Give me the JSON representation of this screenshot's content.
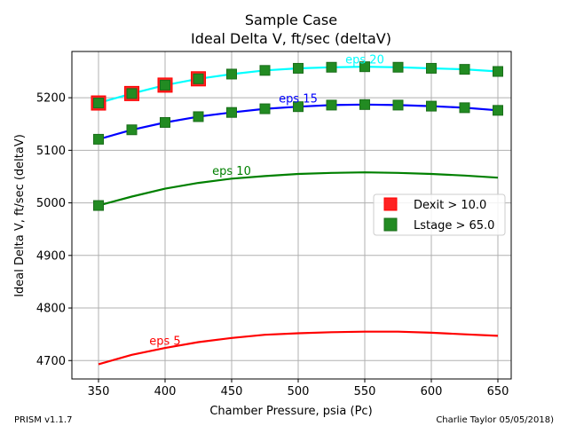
{
  "chart_data": {
    "type": "line",
    "title": "Sample Case",
    "subtitle": "Ideal Delta V, ft/sec (deltaV)",
    "xlabel": "Chamber Pressure, psia (Pc)",
    "ylabel": "Ideal Delta V, ft/sec (deltaV)",
    "xlim": [
      330,
      660
    ],
    "ylim": [
      4665,
      5288
    ],
    "xticks": [
      350,
      400,
      450,
      500,
      550,
      600,
      650
    ],
    "yticks": [
      4700,
      4800,
      4900,
      5000,
      5100,
      5200
    ],
    "grid": true,
    "legend_position": "center-right",
    "x": [
      350,
      375,
      400,
      425,
      450,
      475,
      500,
      525,
      550,
      575,
      600,
      625,
      650
    ],
    "series": [
      {
        "name": "eps 20",
        "color": "#00ffff",
        "values": [
          5190,
          5208,
          5224,
          5236,
          5245,
          5252,
          5256,
          5258,
          5259,
          5258,
          5256,
          5254,
          5250
        ]
      },
      {
        "name": "eps 15",
        "color": "#0000ff",
        "values": [
          5121,
          5139,
          5153,
          5164,
          5172,
          5179,
          5183,
          5186,
          5187,
          5186,
          5184,
          5181,
          5176
        ]
      },
      {
        "name": "eps 10",
        "color": "#008000",
        "values": [
          4995,
          5012,
          5027,
          5038,
          5046,
          5051,
          5055,
          5057,
          5058,
          5057,
          5055,
          5052,
          5048
        ]
      },
      {
        "name": "eps 5",
        "color": "#ff0000",
        "values": [
          4693,
          4711,
          4724,
          4735,
          4743,
          4749,
          4752,
          4754,
          4755,
          4755,
          4753,
          4750,
          4747
        ]
      }
    ],
    "curve_labels": [
      {
        "text": "eps 20",
        "color": "#00ffff",
        "x": 550,
        "y": 5265
      },
      {
        "text": "eps 15",
        "color": "#0000ff",
        "x": 500,
        "y": 5191
      },
      {
        "text": "eps 10",
        "color": "#008000",
        "x": 450,
        "y": 5053
      },
      {
        "text": "eps 5",
        "color": "#ff0000",
        "x": 400,
        "y": 4730
      }
    ],
    "markers": {
      "dexit": {
        "label": "Dexit > 10.0",
        "color": "#ff2222",
        "points": [
          {
            "x": 350,
            "y": 5190
          },
          {
            "x": 375,
            "y": 5208
          },
          {
            "x": 400,
            "y": 5224
          },
          {
            "x": 425,
            "y": 5236
          }
        ]
      },
      "lstage": {
        "label": "Lstage > 65.0",
        "color": "#228b22",
        "points": [
          {
            "x": 350,
            "y": 5190
          },
          {
            "x": 375,
            "y": 5208
          },
          {
            "x": 400,
            "y": 5224
          },
          {
            "x": 425,
            "y": 5236
          },
          {
            "x": 450,
            "y": 5245
          },
          {
            "x": 475,
            "y": 5252
          },
          {
            "x": 500,
            "y": 5256
          },
          {
            "x": 525,
            "y": 5258
          },
          {
            "x": 550,
            "y": 5259
          },
          {
            "x": 575,
            "y": 5258
          },
          {
            "x": 600,
            "y": 5256
          },
          {
            "x": 625,
            "y": 5254
          },
          {
            "x": 650,
            "y": 5250
          },
          {
            "x": 350,
            "y": 5121
          },
          {
            "x": 375,
            "y": 5139
          },
          {
            "x": 400,
            "y": 5153
          },
          {
            "x": 425,
            "y": 5164
          },
          {
            "x": 450,
            "y": 5172
          },
          {
            "x": 475,
            "y": 5179
          },
          {
            "x": 500,
            "y": 5183
          },
          {
            "x": 525,
            "y": 5186
          },
          {
            "x": 550,
            "y": 5187
          },
          {
            "x": 575,
            "y": 5186
          },
          {
            "x": 600,
            "y": 5184
          },
          {
            "x": 625,
            "y": 5181
          },
          {
            "x": 650,
            "y": 5176
          },
          {
            "x": 350,
            "y": 4995
          }
        ]
      }
    }
  },
  "footer": {
    "left": "PRISM v1.1.7",
    "right": "Charlie Taylor 05/05/2018)"
  }
}
